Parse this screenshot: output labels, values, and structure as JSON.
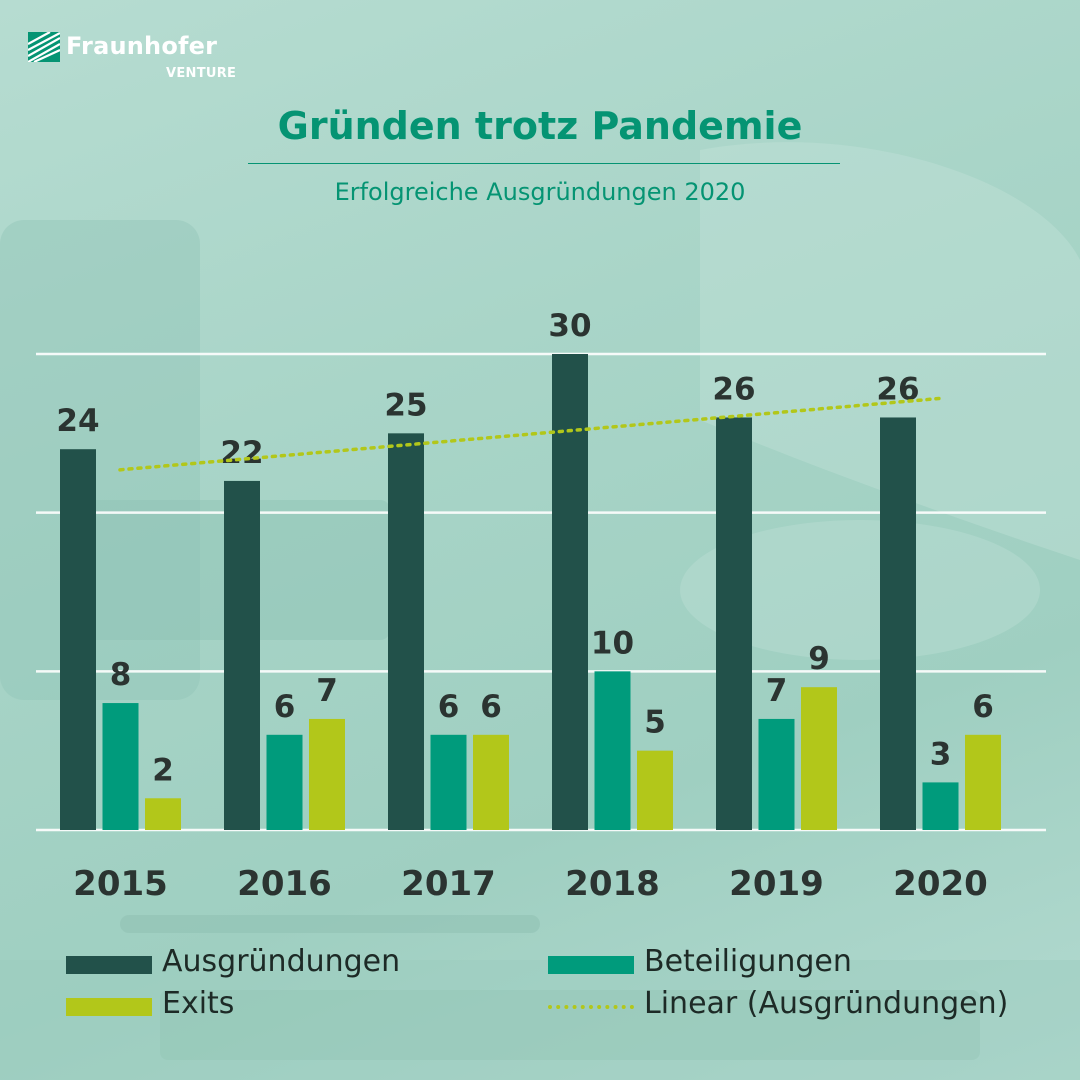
{
  "logo": {
    "name": "Fraunhofer",
    "sub": "VENTURE"
  },
  "title": "Gründen trotz Pandemie",
  "subtitle": "Erfolgreiche Ausgründungen 2020",
  "colors": {
    "ausgruendungen": "#22514a",
    "beteiligungen": "#009b7c",
    "exits": "#b2c71a",
    "trend": "#b2c71a",
    "accent": "#059473"
  },
  "chart_data": {
    "type": "bar",
    "categories": [
      "2015",
      "2016",
      "2017",
      "2018",
      "2019",
      "2020"
    ],
    "series": [
      {
        "name": "Ausgründungen",
        "values": [
          24,
          22,
          25,
          30,
          26,
          26
        ]
      },
      {
        "name": "Beteiligungen",
        "values": [
          8,
          6,
          6,
          10,
          7,
          3
        ]
      },
      {
        "name": "Exits",
        "values": [
          2,
          7,
          6,
          5,
          9,
          6
        ]
      }
    ],
    "trendline": {
      "name": "Linear (Ausgründungen)",
      "series": "Ausgründungen",
      "start": 22.7,
      "end": 27.2
    },
    "title": "Gründen trotz Pandemie",
    "subtitle": "Erfolgreiche Ausgründungen 2020",
    "ylim": [
      0,
      30
    ],
    "grid": true,
    "legend": "bottom"
  },
  "legend": {
    "ausgruendungen": "Ausgründungen",
    "beteiligungen": "Beteiligungen",
    "exits": "Exits",
    "trend": "Linear (Ausgründungen)"
  }
}
